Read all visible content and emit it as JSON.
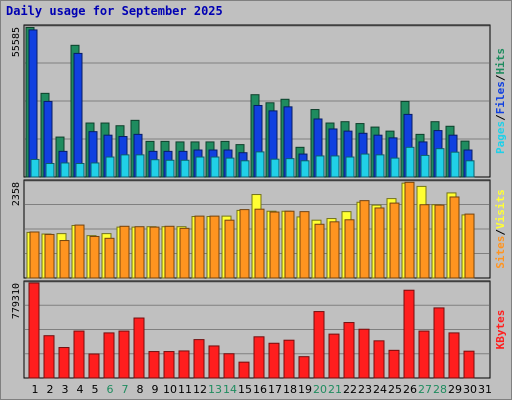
{
  "title": "Daily usage for September 2025",
  "colors": {
    "background": "#C0C0C0",
    "hits": "#1F8C5F",
    "files": "#1040E0",
    "pages": "#20D0E8",
    "visits": "#FFFF33",
    "sites": "#FF9420",
    "kbytes": "#FF1E1E",
    "weekday_label": "#000000",
    "weekend_label": "#1F8C5F",
    "axis_title_sep": "#000000"
  },
  "chart_data": [
    {
      "type": "bar",
      "panel": "hits-files-pages",
      "ylabel_parts": [
        {
          "text": "Pages",
          "color_key": "pages"
        },
        {
          "text": "/",
          "color_key": "axis_title_sep"
        },
        {
          "text": "Files",
          "color_key": "files"
        },
        {
          "text": "/",
          "color_key": "axis_title_sep"
        },
        {
          "text": "Hits",
          "color_key": "hits"
        }
      ],
      "ymax_label": "55585",
      "ylim": [
        0,
        55585
      ],
      "categories": [
        "1",
        "2",
        "3",
        "4",
        "5",
        "6",
        "7",
        "8",
        "9",
        "10",
        "11",
        "12",
        "13",
        "14",
        "15",
        "16",
        "17",
        "18",
        "19",
        "20",
        "21",
        "22",
        "23",
        "24",
        "25",
        "26",
        "27",
        "28",
        "29",
        "30",
        "31"
      ],
      "series": [
        {
          "name": "Hits",
          "color_key": "hits",
          "values": [
            55400,
            31000,
            14800,
            48800,
            20000,
            20000,
            19000,
            21000,
            13200,
            13200,
            13000,
            13000,
            13000,
            13200,
            12000,
            30500,
            27500,
            28800,
            11000,
            25000,
            20000,
            20500,
            19800,
            18500,
            17000,
            28000,
            15800,
            20500,
            18800,
            13300,
            null
          ]
        },
        {
          "name": "Files",
          "color_key": "files",
          "values": [
            54500,
            28000,
            9500,
            45800,
            16800,
            15500,
            15000,
            15800,
            9500,
            9500,
            9500,
            10000,
            10000,
            10000,
            9000,
            26500,
            24500,
            26000,
            8500,
            21500,
            17800,
            17000,
            16200,
            15500,
            14500,
            23200,
            13000,
            17200,
            15500,
            10000,
            null
          ]
        },
        {
          "name": "Pages",
          "color_key": "pages",
          "values": [
            6500,
            5000,
            5200,
            5000,
            5200,
            7400,
            8200,
            8200,
            6400,
            6200,
            6200,
            7400,
            7400,
            7000,
            6000,
            9300,
            6600,
            6800,
            6000,
            7800,
            7800,
            7400,
            8500,
            8200,
            7000,
            11000,
            8000,
            10500,
            9200,
            6000,
            null
          ]
        }
      ]
    },
    {
      "type": "bar",
      "panel": "visits-sites",
      "ylabel_parts": [
        {
          "text": "Sites",
          "color_key": "sites"
        },
        {
          "text": "/",
          "color_key": "axis_title_sep"
        },
        {
          "text": "Visits",
          "color_key": "visits"
        }
      ],
      "ymax_label": "2358",
      "ylim": [
        0,
        2358
      ],
      "categories": [
        "1",
        "2",
        "3",
        "4",
        "5",
        "6",
        "7",
        "8",
        "9",
        "10",
        "11",
        "12",
        "13",
        "14",
        "15",
        "16",
        "17",
        "18",
        "19",
        "20",
        "21",
        "22",
        "23",
        "24",
        "25",
        "26",
        "27",
        "28",
        "29",
        "30",
        "31"
      ],
      "series": [
        {
          "name": "Visits",
          "color_key": "visits",
          "values": [
            1120,
            1080,
            1090,
            1290,
            1040,
            1090,
            1250,
            1250,
            1260,
            1260,
            1260,
            1510,
            1510,
            1520,
            1660,
            2050,
            1640,
            1640,
            1500,
            1420,
            1460,
            1630,
            1860,
            1790,
            1950,
            2330,
            2250,
            1800,
            2090,
            1550,
            null
          ]
        },
        {
          "name": "Sites",
          "color_key": "sites",
          "values": [
            1130,
            1070,
            920,
            1300,
            1020,
            975,
            1270,
            1260,
            1250,
            1270,
            1220,
            1520,
            1520,
            1420,
            1680,
            1690,
            1620,
            1640,
            1630,
            1320,
            1380,
            1430,
            1900,
            1720,
            1840,
            2350,
            1800,
            1790,
            1990,
            1570,
            null
          ]
        }
      ]
    },
    {
      "type": "bar",
      "panel": "kbytes",
      "ylabel_parts": [
        {
          "text": "KBytes",
          "color_key": "kbytes"
        }
      ],
      "ymax_label": "779310",
      "ylim": [
        0,
        779310
      ],
      "categories": [
        "1",
        "2",
        "3",
        "4",
        "5",
        "6",
        "7",
        "8",
        "9",
        "10",
        "11",
        "12",
        "13",
        "14",
        "15",
        "16",
        "17",
        "18",
        "19",
        "20",
        "21",
        "22",
        "23",
        "24",
        "25",
        "26",
        "27",
        "28",
        "29",
        "30",
        "31"
      ],
      "series": [
        {
          "name": "KBytes",
          "color_key": "kbytes",
          "values": [
            779310,
            347000,
            250000,
            385000,
            197000,
            370000,
            385000,
            492000,
            217000,
            217000,
            222000,
            315000,
            263000,
            199000,
            130000,
            338000,
            285000,
            310000,
            175000,
            545000,
            360000,
            455000,
            400000,
            305000,
            227000,
            720000,
            385000,
            575000,
            370000,
            220000,
            null
          ]
        }
      ]
    }
  ],
  "days": [
    {
      "label": "1",
      "weekend": false
    },
    {
      "label": "2",
      "weekend": false
    },
    {
      "label": "3",
      "weekend": false
    },
    {
      "label": "4",
      "weekend": false
    },
    {
      "label": "5",
      "weekend": false
    },
    {
      "label": "6",
      "weekend": true
    },
    {
      "label": "7",
      "weekend": true
    },
    {
      "label": "8",
      "weekend": false
    },
    {
      "label": "9",
      "weekend": false
    },
    {
      "label": "10",
      "weekend": false
    },
    {
      "label": "11",
      "weekend": false
    },
    {
      "label": "12",
      "weekend": false
    },
    {
      "label": "13",
      "weekend": true
    },
    {
      "label": "14",
      "weekend": true
    },
    {
      "label": "15",
      "weekend": false
    },
    {
      "label": "16",
      "weekend": false
    },
    {
      "label": "17",
      "weekend": false
    },
    {
      "label": "18",
      "weekend": false
    },
    {
      "label": "19",
      "weekend": false
    },
    {
      "label": "20",
      "weekend": true
    },
    {
      "label": "21",
      "weekend": true
    },
    {
      "label": "22",
      "weekend": false
    },
    {
      "label": "23",
      "weekend": false
    },
    {
      "label": "24",
      "weekend": false
    },
    {
      "label": "25",
      "weekend": false
    },
    {
      "label": "26",
      "weekend": false
    },
    {
      "label": "27",
      "weekend": true
    },
    {
      "label": "28",
      "weekend": true
    },
    {
      "label": "29",
      "weekend": false
    },
    {
      "label": "30",
      "weekend": false
    },
    {
      "label": "31",
      "weekend": false
    }
  ]
}
